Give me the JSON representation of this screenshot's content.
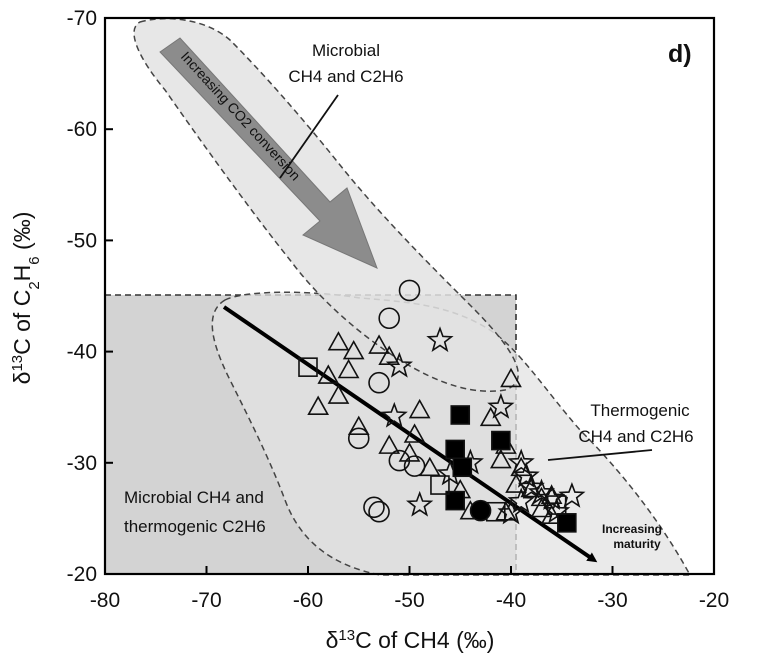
{
  "chart_data": {
    "type": "scatter",
    "panel_label": "d)",
    "xlabel": "δ13C of CH4 (‰)",
    "ylabel": "δ13C of C2H6 (‰)",
    "xlim": [
      -80,
      -20
    ],
    "ylim": [
      -20,
      -70
    ],
    "x_ticks": [
      -80,
      -70,
      -60,
      -50,
      -40,
      -30,
      -20
    ],
    "y_ticks": [
      -70,
      -60,
      -50,
      -40,
      -30,
      -20
    ],
    "x_tick_labels": [
      "-80",
      "-70",
      "-60",
      "-50",
      "-40",
      "-30",
      "-20"
    ],
    "y_tick_labels": [
      "-70",
      "-60",
      "-50",
      "-40",
      "-30",
      "-20"
    ],
    "regions": [
      {
        "label_lines": [
          "Microbial",
          "CH4 and C2H6"
        ]
      },
      {
        "label_lines": [
          "Thermogenic",
          "CH4 and C2H6"
        ]
      },
      {
        "label_lines": [
          "Microbial CH4 and",
          "thermogenic C2H6"
        ]
      }
    ],
    "arrows": [
      {
        "label": "Increasing CO2 conversion"
      },
      {
        "label_lines": [
          "Increasing",
          "maturity"
        ]
      }
    ],
    "series": [
      {
        "marker": "circle-open",
        "points": [
          [
            -50,
            -45.5
          ],
          [
            -52,
            -43
          ],
          [
            -53,
            -37.2
          ],
          [
            -55,
            -32.2
          ],
          [
            -51,
            -30.2
          ],
          [
            -49.5,
            -29.7
          ],
          [
            -53.5,
            -26
          ],
          [
            -53,
            -25.6
          ]
        ]
      },
      {
        "marker": "triangle-open",
        "points": [
          [
            -57,
            -40.8
          ],
          [
            -55.5,
            -40
          ],
          [
            -53,
            -40.5
          ],
          [
            -52,
            -39.5
          ],
          [
            -56,
            -38.3
          ],
          [
            -58,
            -37.8
          ],
          [
            -57,
            -36
          ],
          [
            -59,
            -35
          ],
          [
            -55,
            -33.2
          ],
          [
            -49,
            -34.7
          ],
          [
            -52,
            -31.5
          ],
          [
            -49.5,
            -32.5
          ],
          [
            -50,
            -30.8
          ],
          [
            -48,
            -29.5
          ],
          [
            -45,
            -27.5
          ],
          [
            -42,
            -34
          ],
          [
            -40.5,
            -31.5
          ],
          [
            -41,
            -30.2
          ],
          [
            -40,
            -37.5
          ],
          [
            -39,
            -29.5
          ],
          [
            -39.5,
            -28
          ],
          [
            -38,
            -27.6
          ],
          [
            -37,
            -26.8
          ],
          [
            -36,
            -27
          ],
          [
            -44,
            -25.6
          ],
          [
            -40.5,
            -25.5
          ],
          [
            -37,
            -25.8
          ],
          [
            -36,
            -25.2
          ]
        ]
      },
      {
        "marker": "star-open",
        "points": [
          [
            -47,
            -41
          ],
          [
            -51,
            -38.7
          ],
          [
            -51.5,
            -34.2
          ],
          [
            -41,
            -35
          ],
          [
            -44,
            -30
          ],
          [
            -46,
            -29
          ],
          [
            -39,
            -30
          ],
          [
            -38.5,
            -28.8
          ],
          [
            -38,
            -27.8
          ],
          [
            -37,
            -27.3
          ],
          [
            -36,
            -26.8
          ],
          [
            -39,
            -26.5
          ],
          [
            -34,
            -27
          ],
          [
            -40,
            -25.5
          ],
          [
            -35.5,
            -25.6
          ],
          [
            -49,
            -26.2
          ]
        ]
      },
      {
        "marker": "square-filled",
        "points": [
          [
            -45,
            -34.3
          ],
          [
            -41,
            -32
          ],
          [
            -45.5,
            -31.2
          ],
          [
            -44.8,
            -29.6
          ],
          [
            -45.5,
            -26.6
          ],
          [
            -34.5,
            -24.6
          ]
        ]
      },
      {
        "marker": "square-open",
        "points": [
          [
            -60,
            -38.6
          ],
          [
            -47,
            -28
          ],
          [
            -41.5,
            -25.6
          ],
          [
            -35.5,
            -26.2
          ]
        ]
      },
      {
        "marker": "circle-filled",
        "points": [
          [
            -43,
            -25.7
          ]
        ]
      }
    ]
  }
}
